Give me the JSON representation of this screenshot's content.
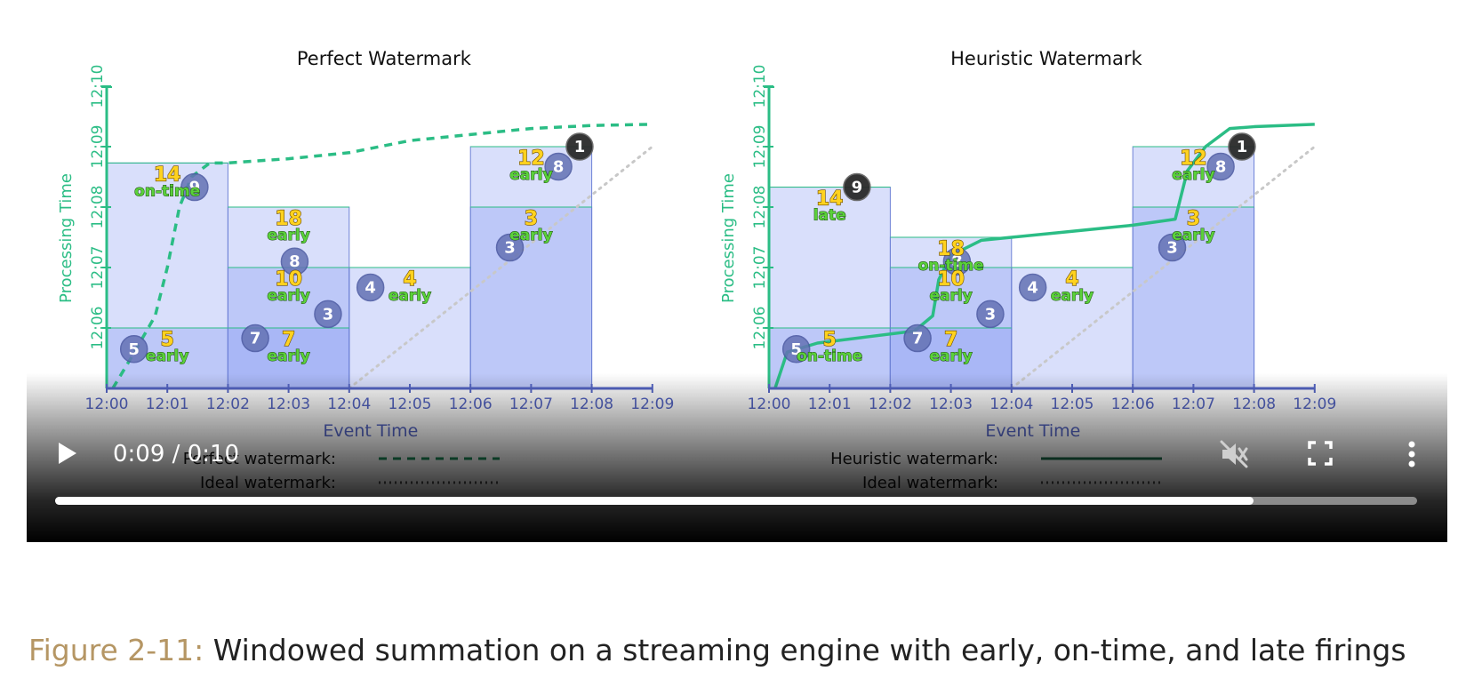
{
  "charts": [
    {
      "title": "Perfect Watermark",
      "ylabel": "Processing Time",
      "xlabel": "Event Time",
      "legend": [
        {
          "label": "Perfect watermark:",
          "style": "dashed",
          "color": "#1d8a58"
        },
        {
          "label": "Ideal watermark:",
          "style": "dotted",
          "color": "#555555"
        }
      ]
    },
    {
      "title": "Heuristic Watermark",
      "ylabel": "Processing Time",
      "xlabel": "Event Time",
      "legend": [
        {
          "label": "Heuristic watermark:",
          "style": "solid",
          "color": "#1d6b4a"
        },
        {
          "label": "Ideal watermark:",
          "style": "dotted",
          "color": "#555555"
        }
      ]
    }
  ],
  "chart_data": [
    {
      "type": "scatter",
      "title": "Perfect Watermark",
      "xlabel": "Event Time",
      "ylabel": "Processing Time",
      "x_ticks": [
        "12:00",
        "12:01",
        "12:02",
        "12:03",
        "12:04",
        "12:05",
        "12:06",
        "12:07",
        "12:08",
        "12:09"
      ],
      "y_ticks": [
        "12:06",
        "12:07",
        "12:08",
        "12:09",
        "12:10"
      ],
      "points": [
        {
          "value": "5",
          "event_min": 0.45,
          "proc_min": 5.65
        },
        {
          "value": "9",
          "event_min": 1.45,
          "proc_min": 8.33
        },
        {
          "value": "7",
          "event_min": 2.45,
          "proc_min": 5.83
        },
        {
          "value": "8",
          "event_min": 3.1,
          "proc_min": 7.1
        },
        {
          "value": "3",
          "event_min": 3.65,
          "proc_min": 6.23
        },
        {
          "value": "4",
          "event_min": 4.35,
          "proc_min": 6.67
        },
        {
          "value": "3",
          "event_min": 6.65,
          "proc_min": 7.33
        },
        {
          "value": "8",
          "event_min": 7.45,
          "proc_min": 8.67
        },
        {
          "value": "1",
          "event_min": 7.8,
          "proc_min": 9.0,
          "dark": true
        }
      ],
      "panes": [
        {
          "event_start": 0,
          "event_end": 2,
          "proc_end": 6.0,
          "sum": "5",
          "timing": "early"
        },
        {
          "event_start": 0,
          "event_end": 2,
          "proc_end": 8.73,
          "sum": "14",
          "timing": "on-time"
        },
        {
          "event_start": 2,
          "event_end": 4,
          "proc_end": 6.0,
          "sum": "7",
          "timing": "early"
        },
        {
          "event_start": 2,
          "event_end": 4,
          "proc_end": 7.0,
          "sum": "10",
          "timing": "early"
        },
        {
          "event_start": 2,
          "event_end": 4,
          "proc_end": 8.0,
          "sum": "18",
          "timing": "early"
        },
        {
          "event_start": 4,
          "event_end": 6,
          "proc_end": 7.0,
          "sum": "4",
          "timing": "early"
        },
        {
          "event_start": 6,
          "event_end": 8,
          "proc_end": 8.0,
          "sum": "3",
          "timing": "early"
        },
        {
          "event_start": 6,
          "event_end": 8,
          "proc_end": 9.0,
          "sum": "12",
          "timing": "early"
        }
      ],
      "watermark": [
        [
          0.1,
          5
        ],
        [
          0.4,
          5.5
        ],
        [
          0.8,
          6.2
        ],
        [
          1.0,
          7.0
        ],
        [
          1.2,
          8.0
        ],
        [
          1.4,
          8.5
        ],
        [
          1.7,
          8.73
        ],
        [
          2.0,
          8.73
        ],
        [
          3.0,
          8.8
        ],
        [
          4.0,
          8.9
        ],
        [
          5.0,
          9.1
        ],
        [
          6.0,
          9.2
        ],
        [
          7.0,
          9.3
        ],
        [
          8.0,
          9.35
        ],
        [
          9.0,
          9.37
        ]
      ],
      "ideal_watermark": [
        [
          4.0,
          5.0
        ],
        [
          9.0,
          9.0
        ]
      ]
    },
    {
      "type": "scatter",
      "title": "Heuristic Watermark",
      "xlabel": "Event Time",
      "ylabel": "Processing Time",
      "x_ticks": [
        "12:00",
        "12:01",
        "12:02",
        "12:03",
        "12:04",
        "12:05",
        "12:06",
        "12:07",
        "12:08",
        "12:09"
      ],
      "y_ticks": [
        "12:06",
        "12:07",
        "12:08",
        "12:09",
        "12:10"
      ],
      "points": [
        {
          "value": "5",
          "event_min": 0.45,
          "proc_min": 5.65
        },
        {
          "value": "9",
          "event_min": 1.45,
          "proc_min": 8.33,
          "dark": true
        },
        {
          "value": "7",
          "event_min": 2.45,
          "proc_min": 5.83
        },
        {
          "value": "8",
          "event_min": 3.1,
          "proc_min": 7.1
        },
        {
          "value": "3",
          "event_min": 3.65,
          "proc_min": 6.23
        },
        {
          "value": "4",
          "event_min": 4.35,
          "proc_min": 6.67
        },
        {
          "value": "3",
          "event_min": 6.65,
          "proc_min": 7.33
        },
        {
          "value": "8",
          "event_min": 7.45,
          "proc_min": 8.67
        },
        {
          "value": "1",
          "event_min": 7.8,
          "proc_min": 9.0,
          "dark": true
        }
      ],
      "panes": [
        {
          "event_start": 0,
          "event_end": 2,
          "proc_end": 6.0,
          "sum": "5",
          "timing": "on-time"
        },
        {
          "event_start": 0,
          "event_end": 2,
          "proc_end": 8.33,
          "sum": "14",
          "timing": "late"
        },
        {
          "event_start": 2,
          "event_end": 4,
          "proc_end": 6.0,
          "sum": "7",
          "timing": "early"
        },
        {
          "event_start": 2,
          "event_end": 4,
          "proc_end": 7.0,
          "sum": "10",
          "timing": "early"
        },
        {
          "event_start": 2,
          "event_end": 4,
          "proc_end": 7.5,
          "sum": "18",
          "timing": "on-time"
        },
        {
          "event_start": 4,
          "event_end": 6,
          "proc_end": 7.0,
          "sum": "4",
          "timing": "early"
        },
        {
          "event_start": 6,
          "event_end": 8,
          "proc_end": 8.0,
          "sum": "3",
          "timing": "early"
        },
        {
          "event_start": 6,
          "event_end": 8,
          "proc_end": 9.0,
          "sum": "12",
          "timing": "early"
        }
      ],
      "watermark": [
        [
          0.1,
          5.0
        ],
        [
          0.3,
          5.6
        ],
        [
          0.8,
          5.75
        ],
        [
          1.6,
          5.85
        ],
        [
          2.4,
          5.95
        ],
        [
          2.7,
          6.2
        ],
        [
          2.8,
          6.8
        ],
        [
          3.0,
          7.2
        ],
        [
          3.5,
          7.45
        ],
        [
          4.0,
          7.5
        ],
        [
          5.0,
          7.6
        ],
        [
          6.0,
          7.7
        ],
        [
          6.7,
          7.8
        ],
        [
          6.9,
          8.6
        ],
        [
          7.2,
          9.0
        ],
        [
          7.6,
          9.3
        ],
        [
          8.0,
          9.33
        ],
        [
          9.0,
          9.37
        ]
      ],
      "ideal_watermark": [
        [
          4.0,
          5.0
        ],
        [
          9.0,
          9.0
        ]
      ]
    }
  ],
  "player": {
    "time": "0:09 / 0:10",
    "progress": 0.88
  },
  "caption": {
    "figure": "Figure 2-11:",
    "text": " Windowed summation on a streaming engine with early, on-time, and late firings"
  }
}
